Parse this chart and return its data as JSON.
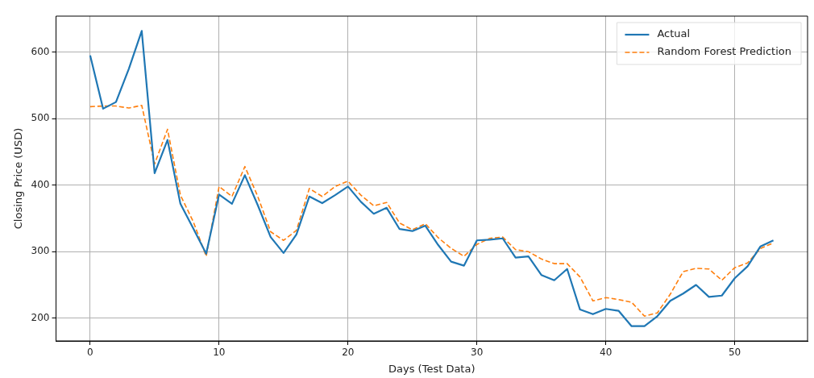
{
  "chart_data": {
    "type": "line",
    "xlabel": "Days (Test Data)",
    "ylabel": "Closing Price (USD)",
    "x": [
      0,
      1,
      2,
      3,
      4,
      5,
      6,
      7,
      8,
      9,
      10,
      11,
      12,
      13,
      14,
      15,
      16,
      17,
      18,
      19,
      20,
      21,
      22,
      23,
      24,
      25,
      26,
      27,
      28,
      29,
      30,
      31,
      32,
      33,
      34,
      35,
      36,
      37,
      38,
      39,
      40,
      41,
      42,
      43,
      44,
      45,
      46,
      47,
      48,
      49,
      50,
      51,
      52,
      53
    ],
    "series": [
      {
        "name": "Actual",
        "color": "#1f77b4",
        "line_style": "solid",
        "values": [
          595,
          515,
          525,
          575,
          632,
          418,
          468,
          372,
          335,
          297,
          386,
          372,
          415,
          370,
          322,
          298,
          326,
          383,
          373,
          385,
          398,
          375,
          357,
          366,
          334,
          331,
          339,
          310,
          285,
          279,
          317,
          318,
          320,
          291,
          293,
          265,
          257,
          274,
          213,
          206,
          214,
          211,
          188,
          188,
          203,
          226,
          237,
          250,
          232,
          234,
          260,
          278,
          308,
          317
        ]
      },
      {
        "name": "Random Forest Prediction",
        "color": "#ff7f0e",
        "line_style": "dashed",
        "values": [
          518,
          519,
          519,
          516,
          520,
          432,
          484,
          385,
          345,
          293,
          398,
          383,
          428,
          383,
          330,
          317,
          332,
          395,
          383,
          398,
          406,
          385,
          369,
          374,
          343,
          333,
          342,
          321,
          305,
          293,
          311,
          320,
          322,
          303,
          300,
          289,
          282,
          282,
          262,
          226,
          231,
          228,
          224,
          203,
          208,
          236,
          270,
          275,
          274,
          257,
          276,
          283,
          305,
          313
        ]
      }
    ],
    "xlim": [
      -2.65,
      55.65
    ],
    "ylim": [
      165.8,
      654.2
    ],
    "xticks": [
      0,
      10,
      20,
      30,
      40,
      50
    ],
    "yticks": [
      200,
      300,
      400,
      500,
      600
    ],
    "grid": true,
    "legend": "top right",
    "marker": "none"
  }
}
